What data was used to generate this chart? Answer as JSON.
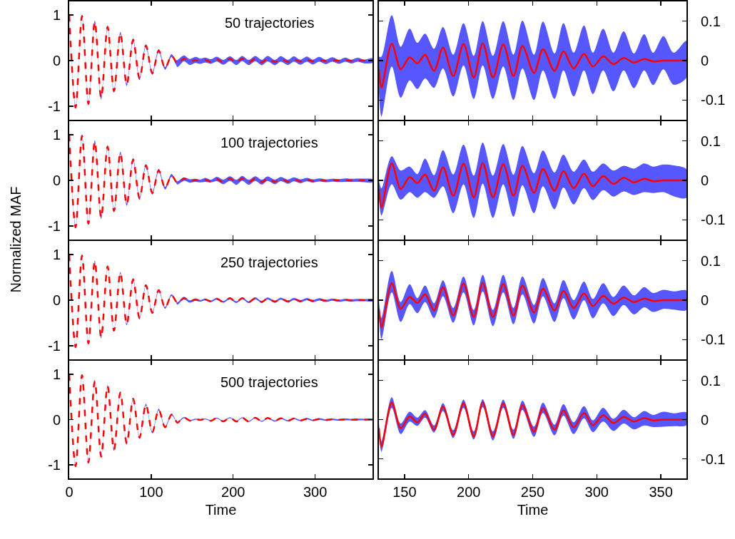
{
  "chart_data": [
    {
      "type": "line",
      "line_style": "dashed",
      "annotations": [
        "50 trajectories"
      ],
      "xlim": [
        0,
        370
      ],
      "xticks": [
        0,
        100,
        200,
        300
      ],
      "ylim": [
        -1.3,
        1.3
      ],
      "yticks": [
        -1,
        0,
        1
      ],
      "tick_labels": "y",
      "x": [
        0,
        7.8,
        15.6,
        23.4,
        31.2,
        39,
        46.8,
        54.6,
        62.4,
        70.2,
        78,
        85.8,
        93.6,
        101.4,
        109.2,
        117,
        124.8,
        130,
        132,
        140,
        147,
        154,
        160,
        166,
        173,
        180,
        188,
        196,
        204,
        211,
        219,
        227,
        235,
        242,
        251,
        258,
        267,
        274,
        282,
        290,
        297,
        305,
        313,
        321,
        329,
        337,
        344,
        352,
        360,
        370
      ],
      "series": [
        {
          "color": "#ff0000",
          "values": [
            1,
            -1.03,
            0.98,
            -0.95,
            0.85,
            -0.82,
            0.74,
            -0.67,
            0.6,
            -0.53,
            0.46,
            -0.4,
            0.33,
            -0.28,
            0.22,
            -0.17,
            0.11,
            -0.022,
            -0.069,
            0.043,
            -0.022,
            0.008,
            -0.007,
            0.015,
            -0.026,
            0.033,
            -0.039,
            0.042,
            -0.043,
            0.044,
            -0.043,
            0.041,
            -0.039,
            0.037,
            -0.031,
            0.029,
            -0.026,
            0.023,
            -0.02,
            0.017,
            -0.015,
            0.011,
            -0.009,
            0.007,
            -0.005,
            0.004,
            -0.002,
            0,
            0,
            0
          ],
          "upper": [
            1.03,
            -1.0,
            1.01,
            -0.92,
            0.88,
            -0.79,
            0.77,
            -0.64,
            0.63,
            -0.5,
            0.49,
            -0.37,
            0.36,
            -0.25,
            0.25,
            -0.14,
            0.14,
            0.01,
            0.01,
            0.115,
            0.035,
            0.081,
            0.045,
            0.068,
            0.03,
            0.085,
            0.015,
            0.095,
            0.012,
            0.1,
            0.012,
            0.1,
            0.015,
            0.101,
            0.015,
            0.099,
            0.018,
            0.095,
            0.02,
            0.089,
            0.02,
            0.081,
            0.02,
            0.074,
            0.018,
            0.067,
            0.02,
            0.062,
            0.02,
            0.05
          ],
          "lower": [
            0.97,
            -1.06,
            0.95,
            -0.98,
            0.82,
            -0.85,
            0.71,
            -0.7,
            0.57,
            -0.56,
            0.43,
            -0.43,
            0.3,
            -0.31,
            0.19,
            -0.2,
            0.08,
            -0.08,
            -0.142,
            -0.015,
            -0.094,
            -0.05,
            -0.072,
            -0.045,
            -0.069,
            -0.02,
            -0.091,
            -0.012,
            -0.097,
            -0.012,
            -0.097,
            -0.015,
            -0.1,
            -0.02,
            -0.1,
            -0.025,
            -0.097,
            -0.025,
            -0.091,
            -0.025,
            -0.085,
            -0.025,
            -0.078,
            -0.025,
            -0.07,
            -0.025,
            -0.062,
            -0.022,
            -0.061,
            -0.043
          ]
        }
      ]
    },
    {
      "type": "line",
      "xlim": [
        130,
        370
      ],
      "xticks": [
        150,
        200,
        250,
        300,
        350
      ],
      "y2lim": [
        -0.15,
        0.15
      ],
      "y2ticks": [
        -0.1,
        0,
        0.1
      ],
      "tick_labels": "y",
      "x": [
        130,
        132,
        140,
        147,
        154,
        160,
        166,
        173,
        180,
        188,
        196,
        204,
        211,
        219,
        227,
        235,
        242,
        251,
        258,
        267,
        274,
        282,
        290,
        297,
        305,
        313,
        321,
        329,
        337,
        344,
        352,
        360,
        370
      ],
      "series": [
        {
          "color": "#ff0000",
          "axis": "y2",
          "values": [
            -0.022,
            -0.069,
            0.043,
            -0.022,
            0.008,
            -0.007,
            0.015,
            -0.026,
            0.033,
            -0.039,
            0.042,
            -0.043,
            0.044,
            -0.043,
            0.041,
            -0.039,
            0.037,
            -0.031,
            0.029,
            -0.026,
            0.023,
            -0.02,
            0.017,
            -0.015,
            0.011,
            -0.009,
            0.007,
            -0.005,
            0.004,
            -0.002,
            0,
            0,
            0
          ],
          "upper": [
            0.01,
            0.01,
            0.115,
            0.035,
            0.081,
            0.045,
            0.068,
            0.03,
            0.085,
            0.015,
            0.095,
            0.012,
            0.1,
            0.012,
            0.1,
            0.015,
            0.101,
            0.015,
            0.099,
            0.018,
            0.095,
            0.02,
            0.089,
            0.02,
            0.081,
            0.02,
            0.074,
            0.018,
            0.067,
            0.02,
            0.062,
            0.02,
            0.05
          ],
          "lower": [
            -0.08,
            -0.142,
            -0.015,
            -0.094,
            -0.05,
            -0.072,
            -0.045,
            -0.069,
            -0.02,
            -0.091,
            -0.012,
            -0.097,
            -0.012,
            -0.097,
            -0.015,
            -0.1,
            -0.02,
            -0.1,
            -0.025,
            -0.097,
            -0.025,
            -0.091,
            -0.025,
            -0.085,
            -0.025,
            -0.078,
            -0.025,
            -0.07,
            -0.025,
            -0.062,
            -0.022,
            -0.061,
            -0.043
          ]
        }
      ]
    },
    {
      "type": "line",
      "line_style": "dashed",
      "annotations": [
        "100 trajectories"
      ],
      "xlim": [
        0,
        370
      ],
      "xticks": [
        0,
        100,
        200,
        300
      ],
      "ylim": [
        -1.3,
        1.3
      ],
      "yticks": [
        -1,
        0,
        1
      ],
      "tick_labels": "y",
      "x": [
        0,
        7.8,
        15.6,
        23.4,
        31.2,
        39,
        46.8,
        54.6,
        62.4,
        70.2,
        78,
        85.8,
        93.6,
        101.4,
        109.2,
        117,
        124.8,
        130,
        132,
        140,
        147,
        154,
        160,
        166,
        173,
        180,
        188,
        196,
        204,
        211,
        219,
        227,
        235,
        242,
        251,
        258,
        267,
        274,
        282,
        290,
        297,
        305,
        313,
        321,
        329,
        337,
        344,
        352,
        360,
        370
      ],
      "series": [
        {
          "color": "#ff0000",
          "values": [
            1,
            -1.03,
            0.98,
            -0.95,
            0.85,
            -0.82,
            0.74,
            -0.67,
            0.6,
            -0.53,
            0.46,
            -0.4,
            0.33,
            -0.28,
            0.22,
            -0.17,
            0.11,
            -0.022,
            -0.069,
            0.043,
            -0.022,
            0.008,
            -0.007,
            0.015,
            -0.026,
            0.033,
            -0.039,
            0.042,
            -0.043,
            0.044,
            -0.043,
            0.041,
            -0.039,
            0.037,
            -0.031,
            0.029,
            -0.026,
            0.023,
            -0.02,
            0.017,
            -0.015,
            0.011,
            -0.009,
            0.007,
            -0.005,
            0.004,
            -0.002,
            0,
            0,
            0
          ],
          "upper": [
            1.03,
            -1.0,
            1.01,
            -0.92,
            0.88,
            -0.79,
            0.77,
            -0.64,
            0.63,
            -0.5,
            0.49,
            -0.37,
            0.36,
            -0.25,
            0.25,
            -0.14,
            0.14,
            0.0,
            -0.02,
            0.061,
            0.025,
            0.035,
            0.016,
            0.055,
            0.013,
            0.077,
            0.015,
            0.091,
            0.012,
            0.096,
            0.012,
            0.092,
            0.014,
            0.087,
            0.018,
            0.076,
            0.02,
            0.065,
            0.022,
            0.053,
            0.022,
            0.043,
            0.025,
            0.037,
            0.03,
            0.043,
            0.035,
            0.04,
            0.038,
            0.028
          ],
          "lower": [
            0.97,
            -1.06,
            0.95,
            -0.98,
            0.82,
            -0.85,
            0.71,
            -0.7,
            0.57,
            -0.56,
            0.43,
            -0.43,
            0.3,
            -0.31,
            0.19,
            -0.2,
            0.08,
            -0.04,
            -0.089,
            -0.01,
            -0.049,
            -0.03,
            -0.044,
            -0.03,
            -0.044,
            -0.015,
            -0.083,
            -0.01,
            -0.095,
            -0.008,
            -0.095,
            -0.01,
            -0.092,
            -0.012,
            -0.083,
            -0.015,
            -0.073,
            -0.018,
            -0.061,
            -0.02,
            -0.05,
            -0.025,
            -0.041,
            -0.028,
            -0.037,
            -0.03,
            -0.032,
            -0.03,
            -0.04,
            -0.044
          ]
        }
      ]
    },
    {
      "type": "line",
      "xlim": [
        130,
        370
      ],
      "xticks": [
        150,
        200,
        250,
        300,
        350
      ],
      "y2lim": [
        -0.15,
        0.15
      ],
      "y2ticks": [
        -0.1,
        0,
        0.1
      ],
      "tick_labels": "y",
      "x": [
        130,
        132,
        140,
        147,
        154,
        160,
        166,
        173,
        180,
        188,
        196,
        204,
        211,
        219,
        227,
        235,
        242,
        251,
        258,
        267,
        274,
        282,
        290,
        297,
        305,
        313,
        321,
        329,
        337,
        344,
        352,
        360,
        370
      ],
      "series": [
        {
          "color": "#ff0000",
          "axis": "y2",
          "values": [
            -0.022,
            -0.069,
            0.043,
            -0.022,
            0.008,
            -0.007,
            0.015,
            -0.026,
            0.033,
            -0.039,
            0.042,
            -0.043,
            0.044,
            -0.043,
            0.041,
            -0.039,
            0.037,
            -0.031,
            0.029,
            -0.026,
            0.023,
            -0.02,
            0.017,
            -0.015,
            0.011,
            -0.009,
            0.007,
            -0.005,
            0.004,
            -0.002,
            0,
            0,
            0
          ],
          "upper": [
            0.0,
            -0.02,
            0.061,
            0.025,
            0.035,
            0.016,
            0.055,
            0.013,
            0.077,
            0.015,
            0.091,
            0.012,
            0.096,
            0.012,
            0.092,
            0.014,
            0.087,
            0.018,
            0.076,
            0.02,
            0.065,
            0.022,
            0.053,
            0.022,
            0.043,
            0.025,
            0.037,
            0.03,
            0.043,
            0.035,
            0.04,
            0.038,
            0.028
          ],
          "lower": [
            -0.04,
            -0.089,
            -0.01,
            -0.049,
            -0.03,
            -0.044,
            -0.03,
            -0.044,
            -0.015,
            -0.083,
            -0.01,
            -0.095,
            -0.008,
            -0.095,
            -0.01,
            -0.092,
            -0.012,
            -0.083,
            -0.015,
            -0.073,
            -0.018,
            -0.061,
            -0.02,
            -0.05,
            -0.025,
            -0.041,
            -0.028,
            -0.037,
            -0.03,
            -0.032,
            -0.03,
            -0.04,
            -0.044
          ]
        }
      ]
    },
    {
      "type": "line",
      "line_style": "dashed",
      "annotations": [
        "250 trajectories"
      ],
      "ylabel": "Normalized MAF",
      "xlim": [
        0,
        370
      ],
      "xticks": [
        0,
        100,
        200,
        300
      ],
      "ylim": [
        -1.3,
        1.3
      ],
      "yticks": [
        -1,
        0,
        1
      ],
      "tick_labels": "y",
      "x": [
        0,
        7.8,
        15.6,
        23.4,
        31.2,
        39,
        46.8,
        54.6,
        62.4,
        70.2,
        78,
        85.8,
        93.6,
        101.4,
        109.2,
        117,
        124.8,
        130,
        132,
        140,
        147,
        154,
        160,
        166,
        173,
        180,
        188,
        196,
        204,
        211,
        219,
        227,
        235,
        242,
        251,
        258,
        267,
        274,
        282,
        290,
        297,
        305,
        313,
        321,
        329,
        337,
        344,
        352,
        360,
        370
      ],
      "series": [
        {
          "color": "#ff0000",
          "values": [
            1,
            -1.03,
            0.98,
            -0.95,
            0.85,
            -0.82,
            0.74,
            -0.67,
            0.6,
            -0.53,
            0.46,
            -0.4,
            0.33,
            -0.28,
            0.22,
            -0.17,
            0.11,
            -0.022,
            -0.069,
            0.043,
            -0.022,
            0.008,
            -0.007,
            0.015,
            -0.026,
            0.033,
            -0.039,
            0.042,
            -0.043,
            0.044,
            -0.043,
            0.041,
            -0.039,
            0.037,
            -0.031,
            0.029,
            -0.026,
            0.023,
            -0.02,
            0.017,
            -0.015,
            0.011,
            -0.009,
            0.007,
            -0.005,
            0.004,
            -0.002,
            0,
            0,
            0
          ],
          "upper": [
            1.02,
            -1.01,
            1.0,
            -0.93,
            0.87,
            -0.8,
            0.76,
            -0.65,
            0.62,
            -0.51,
            0.48,
            -0.38,
            0.35,
            -0.26,
            0.24,
            -0.15,
            0.13,
            0.0,
            -0.045,
            0.074,
            -0.005,
            0.04,
            0.005,
            0.037,
            -0.008,
            0.05,
            -0.02,
            0.06,
            -0.025,
            0.064,
            -0.025,
            0.064,
            -0.02,
            0.06,
            -0.012,
            0.056,
            -0.008,
            0.051,
            0.0,
            0.047,
            0.003,
            0.043,
            0.008,
            0.037,
            0.012,
            0.033,
            0.018,
            0.026,
            0.022,
            0.024
          ],
          "lower": [
            0.98,
            -1.05,
            0.96,
            -0.97,
            0.83,
            -0.84,
            0.72,
            -0.69,
            0.58,
            -0.55,
            0.44,
            -0.42,
            0.31,
            -0.3,
            0.2,
            -0.19,
            0.09,
            -0.03,
            -0.099,
            0.02,
            -0.055,
            -0.01,
            -0.033,
            -0.005,
            -0.045,
            0.01,
            -0.057,
            0.02,
            -0.064,
            0.022,
            -0.066,
            0.02,
            -0.061,
            0.015,
            -0.059,
            0.01,
            -0.055,
            0.005,
            -0.049,
            0.0,
            -0.046,
            -0.008,
            -0.04,
            -0.012,
            -0.036,
            -0.018,
            -0.03,
            -0.022,
            -0.024,
            -0.025
          ]
        }
      ]
    },
    {
      "type": "line",
      "xlim": [
        130,
        370
      ],
      "xticks": [
        150,
        200,
        250,
        300,
        350
      ],
      "y2lim": [
        -0.15,
        0.15
      ],
      "y2ticks": [
        -0.1,
        0,
        0.1
      ],
      "tick_labels": "y",
      "x": [
        130,
        132,
        140,
        147,
        154,
        160,
        166,
        173,
        180,
        188,
        196,
        204,
        211,
        219,
        227,
        235,
        242,
        251,
        258,
        267,
        274,
        282,
        290,
        297,
        305,
        313,
        321,
        329,
        337,
        344,
        352,
        360,
        370
      ],
      "series": [
        {
          "color": "#ff0000",
          "axis": "y2",
          "values": [
            -0.022,
            -0.069,
            0.043,
            -0.022,
            0.008,
            -0.007,
            0.015,
            -0.026,
            0.033,
            -0.039,
            0.042,
            -0.043,
            0.044,
            -0.043,
            0.041,
            -0.039,
            0.037,
            -0.031,
            0.029,
            -0.026,
            0.023,
            -0.02,
            0.017,
            -0.015,
            0.011,
            -0.009,
            0.007,
            -0.005,
            0.004,
            -0.002,
            0,
            0,
            0
          ],
          "upper": [
            0.0,
            -0.045,
            0.074,
            -0.005,
            0.04,
            0.005,
            0.037,
            -0.008,
            0.05,
            -0.02,
            0.06,
            -0.025,
            0.064,
            -0.025,
            0.064,
            -0.02,
            0.06,
            -0.012,
            0.056,
            -0.008,
            0.051,
            0.0,
            0.047,
            0.003,
            0.043,
            0.008,
            0.037,
            0.012,
            0.033,
            0.018,
            0.026,
            0.022,
            0.024
          ],
          "lower": [
            -0.03,
            -0.099,
            0.02,
            -0.055,
            -0.01,
            -0.033,
            -0.005,
            -0.045,
            0.01,
            -0.057,
            0.02,
            -0.064,
            0.022,
            -0.066,
            0.02,
            -0.061,
            0.015,
            -0.059,
            0.01,
            -0.055,
            0.005,
            -0.049,
            0.0,
            -0.046,
            -0.008,
            -0.04,
            -0.012,
            -0.036,
            -0.018,
            -0.03,
            -0.022,
            -0.024,
            -0.025
          ]
        }
      ]
    },
    {
      "type": "line",
      "line_style": "dashed",
      "annotations": [
        "500 trajectories"
      ],
      "xlabel": "Time",
      "xlim": [
        0,
        370
      ],
      "xticks": [
        0,
        100,
        200,
        300
      ],
      "ylim": [
        -1.3,
        1.3
      ],
      "yticks": [
        -1,
        0,
        1
      ],
      "x": [
        0,
        7.8,
        15.6,
        23.4,
        31.2,
        39,
        46.8,
        54.6,
        62.4,
        70.2,
        78,
        85.8,
        93.6,
        101.4,
        109.2,
        117,
        124.8,
        130,
        132,
        140,
        147,
        154,
        160,
        166,
        173,
        180,
        188,
        196,
        204,
        211,
        219,
        227,
        235,
        242,
        251,
        258,
        267,
        274,
        282,
        290,
        297,
        305,
        313,
        321,
        329,
        337,
        344,
        352,
        360,
        370
      ],
      "series": [
        {
          "color": "#ff0000",
          "values": [
            1,
            -1.03,
            0.98,
            -0.95,
            0.85,
            -0.82,
            0.74,
            -0.67,
            0.6,
            -0.53,
            0.46,
            -0.4,
            0.33,
            -0.28,
            0.22,
            -0.17,
            0.11,
            -0.022,
            -0.069,
            0.043,
            -0.022,
            0.008,
            -0.007,
            0.015,
            -0.026,
            0.033,
            -0.039,
            0.042,
            -0.043,
            0.044,
            -0.043,
            0.041,
            -0.039,
            0.037,
            -0.031,
            0.029,
            -0.026,
            0.023,
            -0.02,
            0.017,
            -0.015,
            0.011,
            -0.009,
            0.007,
            -0.005,
            0.004,
            -0.002,
            0,
            0,
            0
          ],
          "upper": [
            1.02,
            -1.01,
            1.0,
            -0.93,
            0.87,
            -0.8,
            0.76,
            -0.65,
            0.62,
            -0.51,
            0.48,
            -0.38,
            0.35,
            -0.26,
            0.24,
            -0.15,
            0.13,
            -0.01,
            -0.055,
            0.057,
            -0.01,
            0.02,
            0.005,
            0.024,
            -0.015,
            0.042,
            -0.027,
            0.051,
            -0.03,
            0.052,
            -0.03,
            0.051,
            -0.026,
            0.048,
            -0.018,
            0.043,
            -0.013,
            0.039,
            -0.007,
            0.034,
            -0.002,
            0.03,
            0.002,
            0.025,
            0.006,
            0.022,
            0.012,
            0.02,
            0.016,
            0.018
          ],
          "lower": [
            0.98,
            -1.05,
            0.96,
            -0.97,
            0.83,
            -0.84,
            0.72,
            -0.69,
            0.58,
            -0.55,
            0.44,
            -0.42,
            0.31,
            -0.3,
            0.2,
            -0.19,
            0.09,
            -0.025,
            -0.082,
            0.03,
            -0.037,
            -0.005,
            -0.016,
            0.005,
            -0.033,
            0.022,
            -0.047,
            0.03,
            -0.051,
            0.032,
            -0.053,
            0.03,
            -0.049,
            0.025,
            -0.044,
            0.017,
            -0.04,
            0.01,
            -0.037,
            0.003,
            -0.032,
            -0.005,
            -0.029,
            -0.01,
            -0.025,
            -0.015,
            -0.019,
            -0.018,
            -0.017,
            -0.014
          ]
        }
      ]
    },
    {
      "type": "line",
      "xlabel": "Time",
      "xlim": [
        130,
        370
      ],
      "xticks": [
        150,
        200,
        250,
        300,
        350
      ],
      "y2lim": [
        -0.15,
        0.15
      ],
      "y2ticks": [
        -0.1,
        0,
        0.1
      ],
      "x": [
        130,
        132,
        140,
        147,
        154,
        160,
        166,
        173,
        180,
        188,
        196,
        204,
        211,
        219,
        227,
        235,
        242,
        251,
        258,
        267,
        274,
        282,
        290,
        297,
        305,
        313,
        321,
        329,
        337,
        344,
        352,
        360,
        370
      ],
      "series": [
        {
          "color": "#ff0000",
          "axis": "y2",
          "values": [
            -0.022,
            -0.069,
            0.043,
            -0.022,
            0.008,
            -0.007,
            0.015,
            -0.026,
            0.033,
            -0.039,
            0.042,
            -0.043,
            0.044,
            -0.043,
            0.041,
            -0.039,
            0.037,
            -0.031,
            0.029,
            -0.026,
            0.023,
            -0.02,
            0.017,
            -0.015,
            0.011,
            -0.009,
            0.007,
            -0.005,
            0.004,
            -0.002,
            0,
            0,
            0
          ],
          "upper": [
            -0.01,
            -0.055,
            0.057,
            -0.01,
            0.02,
            0.005,
            0.024,
            -0.015,
            0.042,
            -0.027,
            0.051,
            -0.03,
            0.052,
            -0.03,
            0.051,
            -0.026,
            0.048,
            -0.018,
            0.043,
            -0.013,
            0.039,
            -0.007,
            0.034,
            -0.002,
            0.03,
            0.002,
            0.025,
            0.006,
            0.022,
            0.012,
            0.02,
            0.016,
            0.018
          ],
          "lower": [
            -0.025,
            -0.082,
            0.03,
            -0.037,
            -0.005,
            -0.016,
            0.005,
            -0.033,
            0.022,
            -0.047,
            0.03,
            -0.051,
            0.032,
            -0.053,
            0.03,
            -0.049,
            0.025,
            -0.044,
            0.017,
            -0.04,
            0.01,
            -0.037,
            0.003,
            -0.032,
            -0.005,
            -0.029,
            -0.01,
            -0.025,
            -0.015,
            -0.019,
            -0.018,
            -0.017,
            -0.014
          ]
        }
      ]
    }
  ]
}
